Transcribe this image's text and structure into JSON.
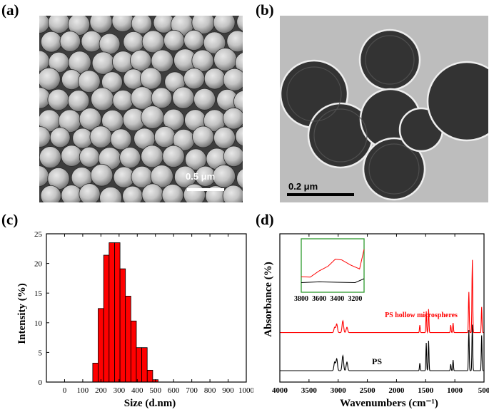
{
  "panels": {
    "a": {
      "letter": "(a)",
      "scale_label": "0.5 μm",
      "scale_color": "#ffffff"
    },
    "b": {
      "letter": "(b)",
      "scale_label": "0.2 μm",
      "scale_color": "#000000"
    },
    "c": {
      "letter": "(c)"
    },
    "d": {
      "letter": "(d)",
      "ylabel": "Absorbance (%)",
      "xlabel": "Wavenumbers (cm⁻¹)"
    }
  },
  "chart_data": [
    {
      "type": "bar",
      "panel": "c",
      "xlabel": "Size (d.nm)",
      "ylabel": "Intensity (%)",
      "xlim": [
        -100,
        1000
      ],
      "ylim": [
        0,
        25
      ],
      "xticks": [
        "0",
        "100",
        "200",
        "300",
        "400",
        "500",
        "600",
        "700",
        "800",
        "900",
        "1000"
      ],
      "yticks": [
        "0",
        "5",
        "10",
        "15",
        "20",
        "25"
      ],
      "bin_width": 30,
      "bins": [
        {
          "x": 170,
          "value": 3.2
        },
        {
          "x": 200,
          "value": 12.4
        },
        {
          "x": 230,
          "value": 21.4
        },
        {
          "x": 260,
          "value": 23.5
        },
        {
          "x": 290,
          "value": 23.5
        },
        {
          "x": 320,
          "value": 19.1
        },
        {
          "x": 350,
          "value": 14.5
        },
        {
          "x": 380,
          "value": 10.3
        },
        {
          "x": 410,
          "value": 5.8
        },
        {
          "x": 440,
          "value": 5.8
        },
        {
          "x": 470,
          "value": 2.0
        },
        {
          "x": 500,
          "value": 0.4
        }
      ],
      "bar_color": "#ff0000",
      "legend": false
    },
    {
      "type": "line",
      "panel": "d",
      "xlabel": "Wavenumbers (cm⁻¹)",
      "ylabel": "Absorbance (%)",
      "xlim": [
        4000,
        500
      ],
      "xticks": [
        "4000",
        "3500",
        "3000",
        "2500",
        "2000",
        "1500",
        "1000",
        "500"
      ],
      "series": [
        {
          "name": "PS hollow microspheres",
          "color": "#ff0000",
          "baseline": 0.15,
          "peaks": [
            [
              3060,
              0.05
            ],
            [
              3025,
              0.08
            ],
            [
              2920,
              0.11
            ],
            [
              2850,
              0.05
            ],
            [
              1600,
              0.07
            ],
            [
              1490,
              0.2
            ],
            [
              1450,
              0.22
            ],
            [
              1070,
              0.07
            ],
            [
              1030,
              0.09
            ],
            [
              760,
              0.38
            ],
            [
              700,
              0.68
            ],
            [
              540,
              0.24
            ]
          ]
        },
        {
          "name": "PS",
          "color": "#000000",
          "baseline": 0.0,
          "peaks": [
            [
              3060,
              0.08
            ],
            [
              3025,
              0.11
            ],
            [
              2920,
              0.14
            ],
            [
              2850,
              0.08
            ],
            [
              1600,
              0.07
            ],
            [
              1490,
              0.26
            ],
            [
              1450,
              0.28
            ],
            [
              1070,
              0.06
            ],
            [
              1030,
              0.1
            ],
            [
              760,
              0.38
            ],
            [
              700,
              0.43
            ],
            [
              540,
              0.33
            ]
          ]
        }
      ],
      "inset": {
        "xlim": [
          3800,
          3100
        ],
        "xticks": [
          "3800",
          "3600",
          "3400",
          "3200"
        ],
        "series": [
          {
            "name": "PS hollow microspheres",
            "color": "#ff0000",
            "points": [
              [
                3800,
                0.25
              ],
              [
                3700,
                0.24
              ],
              [
                3600,
                0.4
              ],
              [
                3500,
                0.52
              ],
              [
                3420,
                0.7
              ],
              [
                3350,
                0.68
              ],
              [
                3250,
                0.55
              ],
              [
                3150,
                0.45
              ],
              [
                3100,
                0.95
              ]
            ]
          },
          {
            "name": "PS",
            "color": "#000000",
            "points": [
              [
                3800,
                0.1
              ],
              [
                3600,
                0.12
              ],
              [
                3400,
                0.11
              ],
              [
                3200,
                0.1
              ],
              [
                3100,
                0.2
              ]
            ]
          }
        ],
        "frame_color": "#2e9a2e"
      }
    }
  ]
}
